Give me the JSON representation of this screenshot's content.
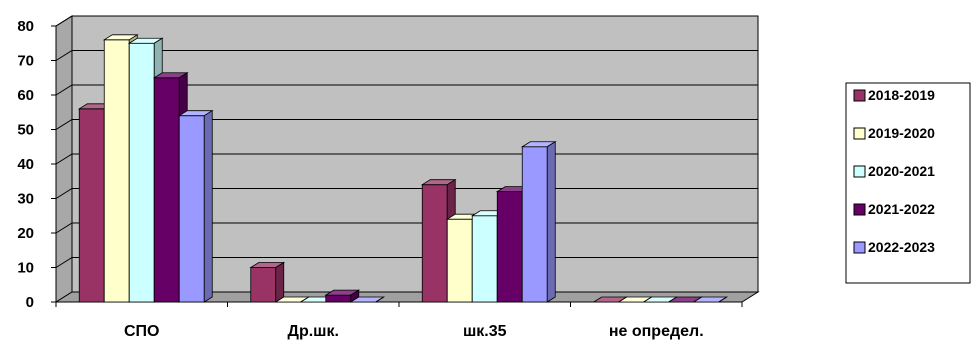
{
  "chart_data": {
    "type": "bar",
    "title": "",
    "xlabel": "",
    "ylabel": "",
    "ylim": [
      0,
      80
    ],
    "yticks": [
      0,
      10,
      20,
      30,
      40,
      50,
      60,
      70,
      80
    ],
    "grid": true,
    "legend_position": "right",
    "categories": [
      "СПО",
      "Др.шк.",
      "шк.35",
      "не определ."
    ],
    "series": [
      {
        "name": "2018-2019",
        "color": "#993366",
        "values": [
          56,
          10,
          34,
          0
        ]
      },
      {
        "name": "2019-2020",
        "color": "#FFFFCC",
        "values": [
          76,
          0,
          24,
          0
        ]
      },
      {
        "name": "2020-2021",
        "color": "#CCFFFF",
        "values": [
          75,
          0,
          25,
          0
        ]
      },
      {
        "name": "2021-2022",
        "color": "#660066",
        "values": [
          65,
          2,
          32,
          0
        ]
      },
      {
        "name": "2022-2023",
        "color": "#9999FF",
        "values": [
          54,
          0,
          45,
          0
        ]
      }
    ]
  }
}
